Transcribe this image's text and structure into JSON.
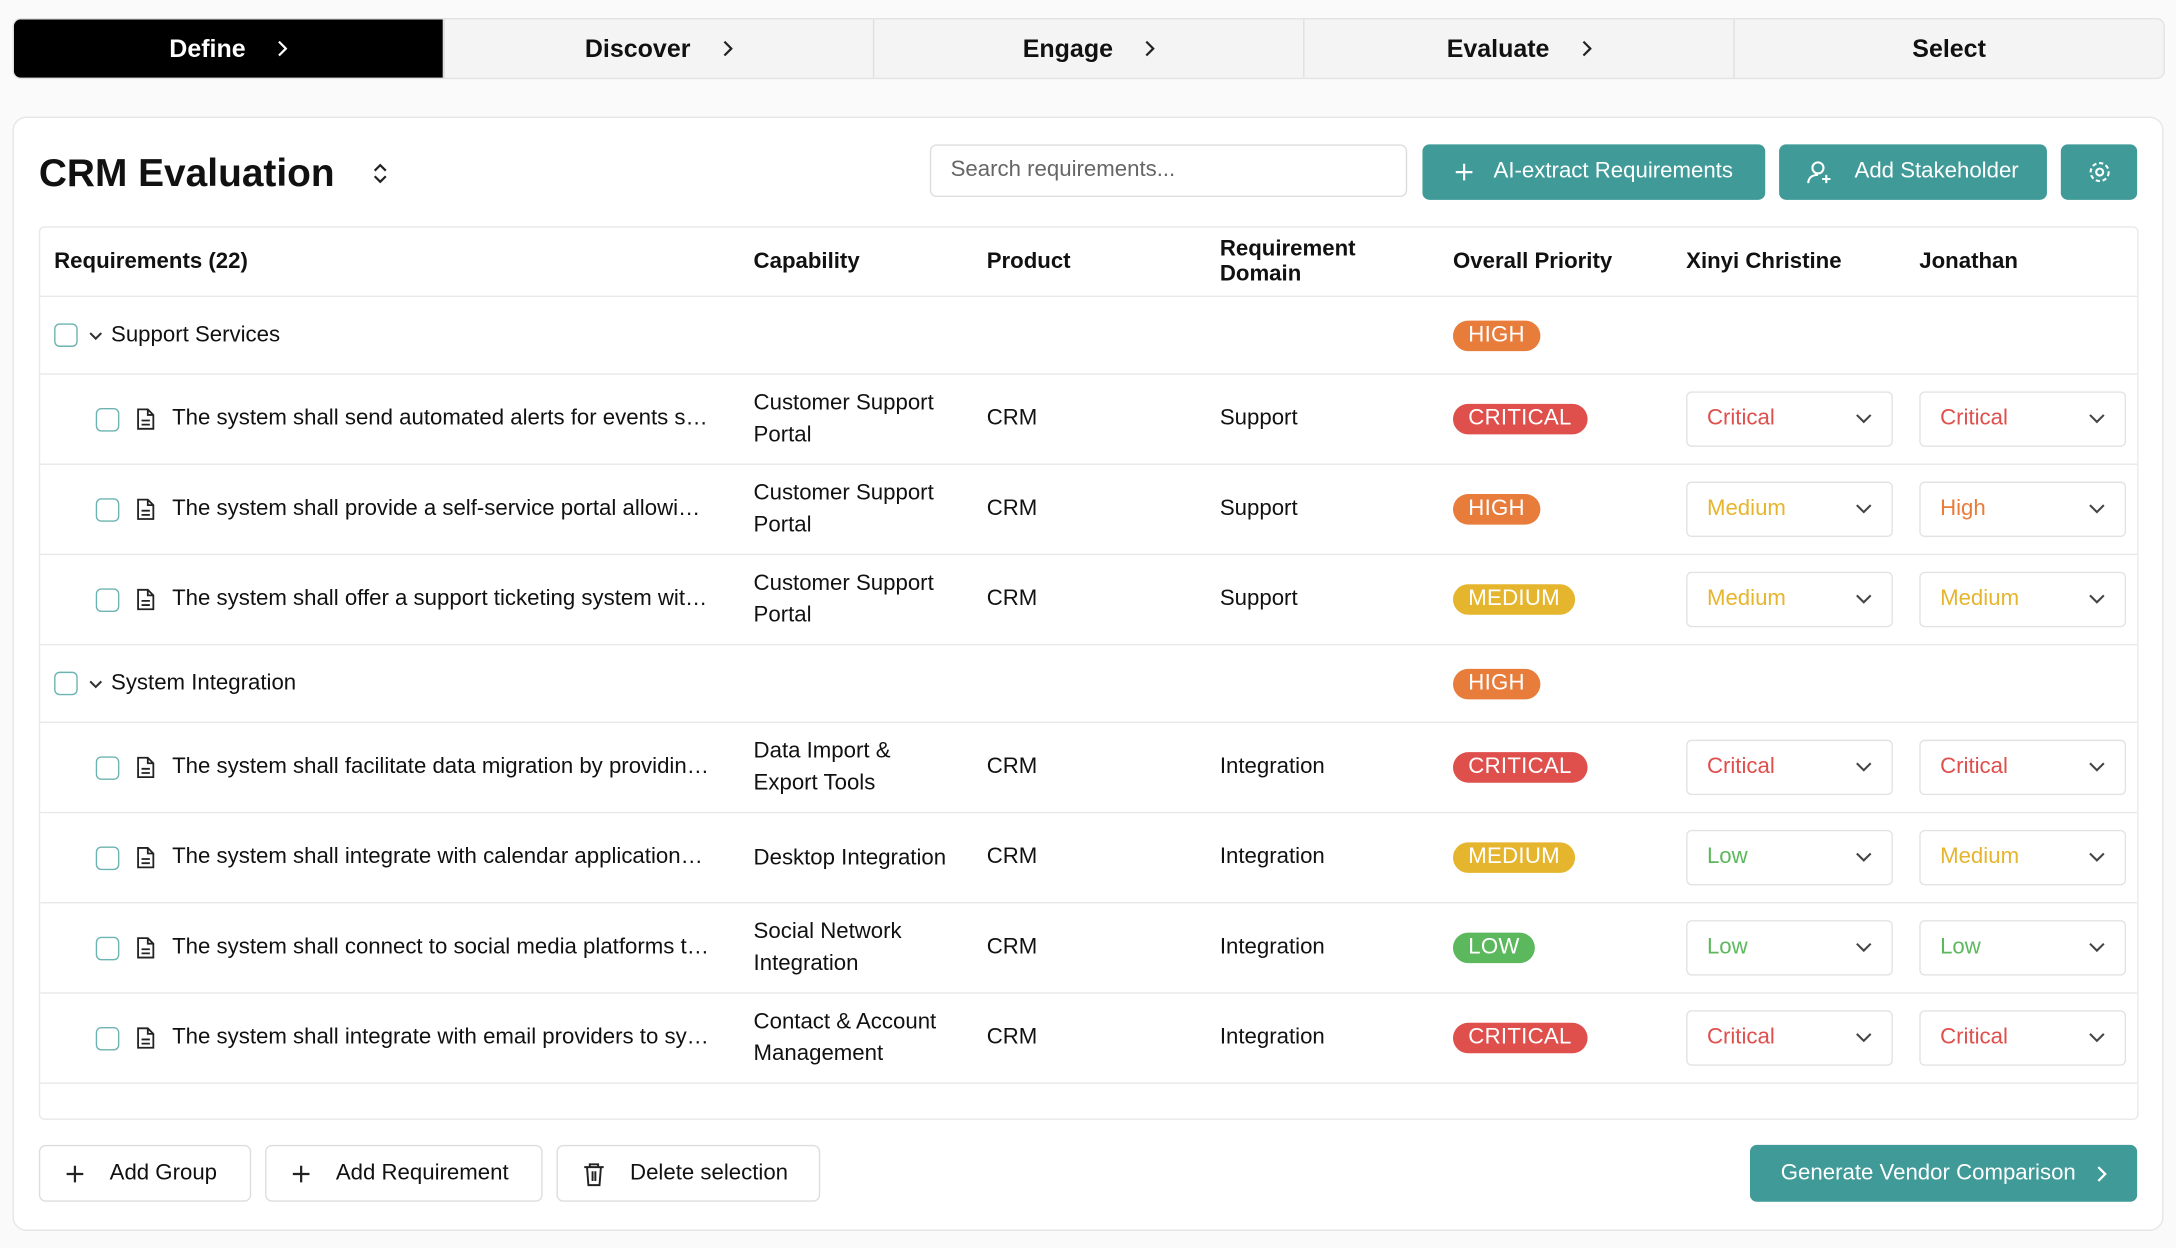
{
  "steps": [
    "Define",
    "Discover",
    "Engage",
    "Evaluate",
    "Select"
  ],
  "title": "CRM Evaluation",
  "search_placeholder": "Search requirements...",
  "buttons": {
    "ai_extract": "AI-extract Requirements",
    "add_stakeholder": "Add Stakeholder",
    "add_group": "Add Group",
    "add_requirement": "Add Requirement",
    "delete_selection": "Delete selection",
    "generate": "Generate Vendor Comparison"
  },
  "table": {
    "headers": [
      "Requirements (22)",
      "Capability",
      "Product",
      "Requirement Domain",
      "Overall Priority",
      "Xinyi Christine",
      "Jonathan"
    ],
    "priority_colors": {
      "CRITICAL": "#df4f4c",
      "HIGH": "#e87c3a",
      "MEDIUM": "#e6b52e",
      "LOW": "#5cb85c"
    },
    "groups": [
      {
        "name": "Support Services",
        "priority": "HIGH",
        "requirements": [
          {
            "text": "The system shall send automated alerts for events s…",
            "capability": "Customer Support Portal",
            "product": "CRM",
            "domain": "Support",
            "priority": "CRITICAL",
            "ratings": [
              "Critical",
              "Critical"
            ]
          },
          {
            "text": "The system shall provide a self-service portal allowi…",
            "capability": "Customer Support Portal",
            "product": "CRM",
            "domain": "Support",
            "priority": "HIGH",
            "ratings": [
              "Medium",
              "High"
            ]
          },
          {
            "text": "The system shall offer a support ticketing system wit…",
            "capability": "Customer Support Portal",
            "product": "CRM",
            "domain": "Support",
            "priority": "MEDIUM",
            "ratings": [
              "Medium",
              "Medium"
            ]
          }
        ]
      },
      {
        "name": "System Integration",
        "priority": "HIGH",
        "requirements": [
          {
            "text": "The system shall facilitate data migration by providin…",
            "capability": "Data Import & Export Tools",
            "product": "CRM",
            "domain": "Integration",
            "priority": "CRITICAL",
            "ratings": [
              "Critical",
              "Critical"
            ]
          },
          {
            "text": "The system shall integrate with calendar application…",
            "capability": "Desktop Integration",
            "product": "CRM",
            "domain": "Integration",
            "priority": "MEDIUM",
            "ratings": [
              "Low",
              "Medium"
            ]
          },
          {
            "text": "The system shall connect to social media platforms t…",
            "capability": "Social Network Integration",
            "product": "CRM",
            "domain": "Integration",
            "priority": "LOW",
            "ratings": [
              "Low",
              "Low"
            ]
          },
          {
            "text": "The system shall integrate with email providers to sy…",
            "capability": "Contact & Account Management",
            "product": "CRM",
            "domain": "Integration",
            "priority": "CRITICAL",
            "ratings": [
              "Critical",
              "Critical"
            ]
          }
        ]
      }
    ]
  }
}
